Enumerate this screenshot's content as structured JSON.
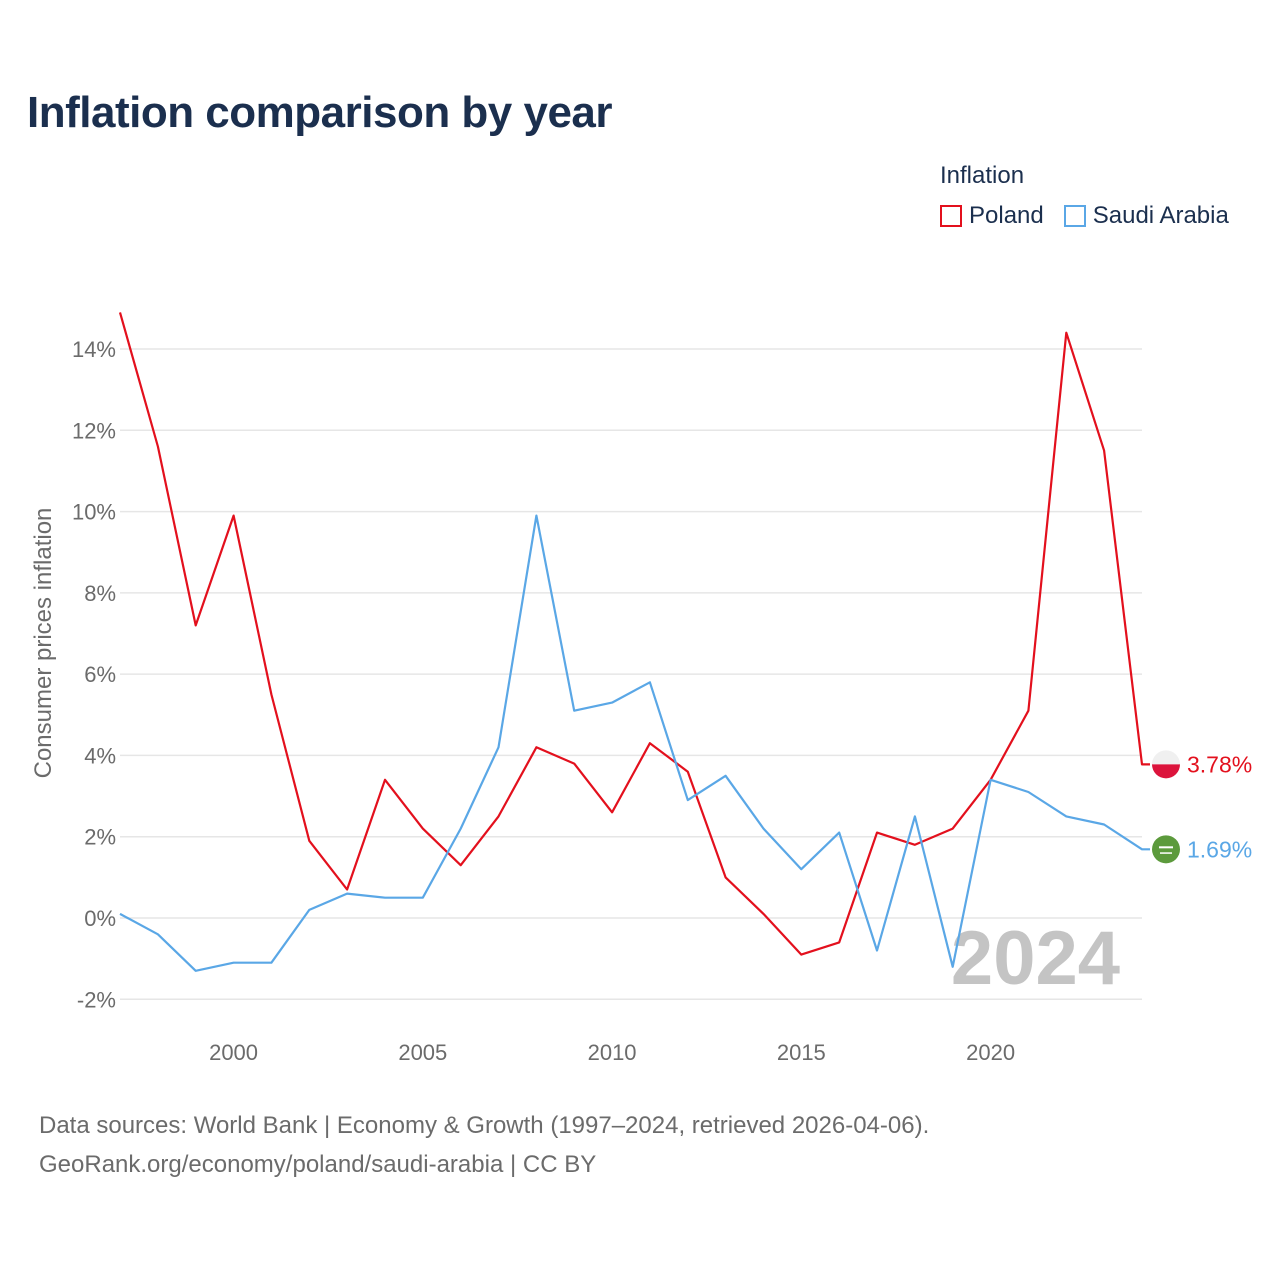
{
  "title": "Inflation comparison by year",
  "legend": {
    "title": "Inflation",
    "items": [
      {
        "label": "Poland",
        "color": "#e3101d"
      },
      {
        "label": "Saudi Arabia",
        "color": "#5aa7e6"
      }
    ]
  },
  "footer": {
    "line1": "Data sources: World Bank | Economy & Growth (1997–2024, retrieved 2026-04-06).",
    "line2": "GeoRank.org/economy/poland/saudi-arabia | CC BY"
  },
  "chart_data": {
    "type": "line",
    "title": "Inflation comparison by year",
    "ylabel": "Consumer prices inflation",
    "xlabel": "",
    "watermark": "2024",
    "xlim": [
      1997,
      2024
    ],
    "ylim": [
      -2,
      15
    ],
    "yticks": [
      -2,
      0,
      2,
      4,
      6,
      8,
      10,
      12,
      14
    ],
    "ytick_labels": [
      "-2%",
      "0%",
      "2%",
      "4%",
      "6%",
      "8%",
      "10%",
      "12%",
      "14%"
    ],
    "xticks": [
      2000,
      2005,
      2010,
      2015,
      2020
    ],
    "xtick_labels": [
      "2000",
      "2005",
      "2010",
      "2015",
      "2020"
    ],
    "x": [
      1997,
      1998,
      1999,
      2000,
      2001,
      2002,
      2003,
      2004,
      2005,
      2006,
      2007,
      2008,
      2009,
      2010,
      2011,
      2012,
      2013,
      2014,
      2015,
      2016,
      2017,
      2018,
      2019,
      2020,
      2021,
      2022,
      2023,
      2024
    ],
    "series": [
      {
        "name": "Poland",
        "color": "#e3101d",
        "end_label": "3.78%",
        "values": [
          14.9,
          11.6,
          7.2,
          9.9,
          5.5,
          1.9,
          0.7,
          3.4,
          2.2,
          1.3,
          2.5,
          4.2,
          3.8,
          2.6,
          4.3,
          3.6,
          1.0,
          0.1,
          -0.9,
          -0.6,
          2.1,
          1.8,
          2.2,
          3.4,
          5.1,
          14.4,
          11.5,
          3.78
        ]
      },
      {
        "name": "Saudi Arabia",
        "color": "#5aa7e6",
        "end_label": "1.69%",
        "values": [
          0.1,
          -0.4,
          -1.3,
          -1.1,
          -1.1,
          0.2,
          0.6,
          0.5,
          0.5,
          2.2,
          4.2,
          9.9,
          5.1,
          5.3,
          5.8,
          2.9,
          3.5,
          2.2,
          1.2,
          2.1,
          -0.8,
          2.5,
          -1.2,
          3.4,
          3.1,
          2.5,
          2.3,
          1.69
        ]
      }
    ]
  }
}
